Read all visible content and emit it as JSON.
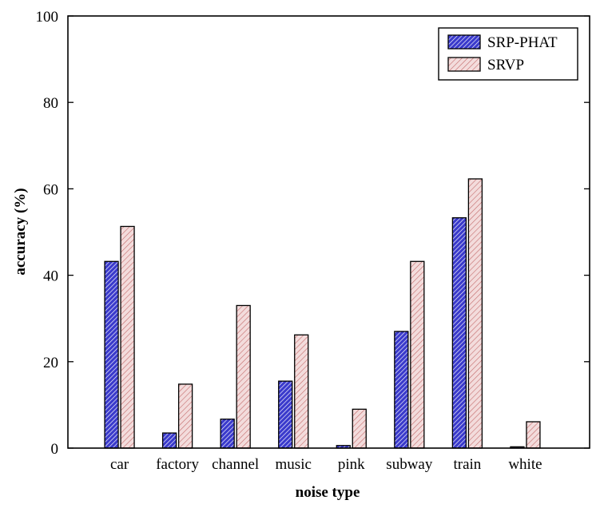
{
  "chart_data": {
    "type": "bar",
    "title": "",
    "xlabel": "noise type",
    "ylabel": "accuracy (%)",
    "ylim": [
      0,
      100
    ],
    "yticks": [
      "0",
      "20",
      "40",
      "60",
      "80",
      "100"
    ],
    "grid": false,
    "legend_position": "top-right",
    "categories": [
      "car",
      "factory",
      "channel",
      "music",
      "pink",
      "subway",
      "train",
      "white"
    ],
    "series": [
      {
        "name": "SRP-PHAT",
        "color": "#3a3acc",
        "hatch": "dense diagonal",
        "values": [
          43.2,
          3.5,
          6.7,
          15.5,
          0.6,
          27.0,
          53.3,
          0.3
        ]
      },
      {
        "name": "SRVP",
        "color": "#e9cccc",
        "hatch": "diagonal",
        "values": [
          51.3,
          14.8,
          33.0,
          26.2,
          9.0,
          43.2,
          62.3,
          6.1
        ]
      }
    ]
  }
}
